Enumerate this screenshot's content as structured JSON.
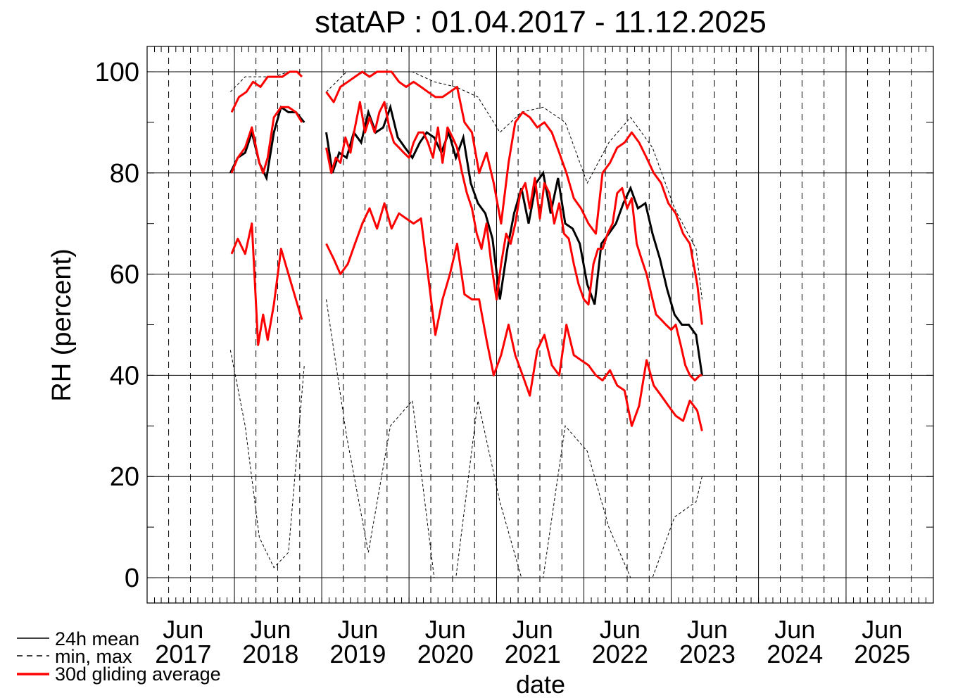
{
  "chart_data": {
    "type": "line",
    "title": "statAP : 01.04.2017 - 11.12.2025",
    "xlabel": "date",
    "ylabel": "RH (percent)",
    "ylim": [
      -5,
      105
    ],
    "y_ticks": [
      0,
      20,
      40,
      60,
      80,
      100
    ],
    "xlim": [
      "2017-01-01",
      "2026-01-01"
    ],
    "x_tick_labels": [
      {
        "date": "2017-06-01",
        "month": "Jun",
        "year": "2017"
      },
      {
        "date": "2018-06-01",
        "month": "Jun",
        "year": "2018"
      },
      {
        "date": "2019-06-01",
        "month": "Jun",
        "year": "2019"
      },
      {
        "date": "2020-06-01",
        "month": "Jun",
        "year": "2020"
      },
      {
        "date": "2021-06-01",
        "month": "Jun",
        "year": "2021"
      },
      {
        "date": "2022-06-01",
        "month": "Jun",
        "year": "2022"
      },
      {
        "date": "2023-06-01",
        "month": "Jun",
        "year": "2023"
      },
      {
        "date": "2024-06-01",
        "month": "Jun",
        "year": "2024"
      },
      {
        "date": "2025-06-01",
        "month": "Jun",
        "year": "2025"
      }
    ],
    "grid": true,
    "legend_position": "bottom-left",
    "legend": [
      {
        "label": "24h mean",
        "style": "solid",
        "color": "#000000"
      },
      {
        "label": "min, max",
        "style": "dashed",
        "color": "#000000"
      },
      {
        "label": "30d gliding average",
        "style": "solid",
        "color": "#ff0000"
      }
    ],
    "series": [
      {
        "label": "24h mean",
        "color": "#000000",
        "segments": [
          {
            "x": [
              "2017-12-15",
              "2018-01-15",
              "2018-02-15",
              "2018-03-15",
              "2018-04-15",
              "2018-05-15",
              "2018-06-15",
              "2018-07-15",
              "2018-08-15",
              "2018-09-15",
              "2018-10-20"
            ],
            "y": [
              80,
              83,
              84,
              88,
              82,
              79,
              88,
              93,
              92,
              92,
              90
            ]
          },
          {
            "x": [
              "2019-01-20",
              "2019-02-15",
              "2019-03-15",
              "2019-04-15",
              "2019-05-15",
              "2019-06-15",
              "2019-07-15",
              "2019-08-15",
              "2019-09-15",
              "2019-10-15",
              "2019-11-15",
              "2019-12-15",
              "2020-01-15",
              "2020-02-15",
              "2020-03-15",
              "2020-04-15",
              "2020-05-15",
              "2020-06-15",
              "2020-07-15",
              "2020-08-15",
              "2020-09-15",
              "2020-10-15",
              "2020-11-15",
              "2020-12-15",
              "2021-01-15",
              "2021-02-15",
              "2021-03-15",
              "2021-04-15",
              "2021-05-15",
              "2021-06-15",
              "2021-07-15",
              "2021-08-15",
              "2021-09-15",
              "2021-10-15",
              "2021-11-15",
              "2021-12-15",
              "2022-01-15",
              "2022-02-15",
              "2022-03-15",
              "2022-04-15",
              "2022-05-15",
              "2022-06-15",
              "2022-07-15",
              "2022-08-15",
              "2022-09-15",
              "2022-10-15",
              "2022-11-15",
              "2022-12-15",
              "2023-01-15",
              "2023-02-15",
              "2023-03-15",
              "2023-04-15",
              "2023-05-10"
            ],
            "y": [
              88,
              80,
              84,
              83,
              88,
              86,
              92,
              88,
              89,
              93,
              87,
              85,
              83,
              86,
              88,
              87,
              84,
              88,
              83,
              87,
              78,
              74,
              72,
              67,
              55,
              65,
              72,
              77,
              70,
              78,
              80,
              72,
              79,
              70,
              69,
              66,
              58,
              54,
              66,
              68,
              70,
              74,
              77,
              73,
              74,
              68,
              63,
              57,
              52,
              50,
              50,
              48,
              40
            ]
          }
        ]
      },
      {
        "label": "min, max",
        "color": "#000000",
        "max_segments": [
          {
            "x": [
              "2017-12-15",
              "2018-02-15",
              "2018-04-15",
              "2018-06-15",
              "2018-08-15",
              "2018-10-20"
            ],
            "y": [
              96,
              99,
              99,
              99,
              100,
              100
            ]
          },
          {
            "x": [
              "2019-01-20",
              "2019-04-15",
              "2019-07-15",
              "2019-10-15",
              "2020-01-15",
              "2020-04-15",
              "2020-07-15",
              "2020-10-15",
              "2021-01-15",
              "2021-04-15",
              "2021-07-15",
              "2021-10-15",
              "2022-01-15",
              "2022-04-15",
              "2022-07-15",
              "2022-10-15",
              "2023-01-15",
              "2023-04-15",
              "2023-05-10"
            ],
            "y": [
              96,
              100,
              100,
              100,
              100,
              98,
              97,
              95,
              88,
              92,
              93,
              90,
              78,
              86,
              91,
              85,
              73,
              65,
              55
            ]
          }
        ],
        "min_segments": [
          {
            "x": [
              "2017-12-15",
              "2018-02-15",
              "2018-04-15",
              "2018-06-15",
              "2018-08-15",
              "2018-10-20"
            ],
            "y": [
              45,
              30,
              8,
              2,
              5,
              42
            ]
          },
          {
            "x": [
              "2019-01-20",
              "2019-04-15",
              "2019-07-15",
              "2019-10-15",
              "2020-01-15",
              "2020-04-15",
              "2020-07-15",
              "2020-10-15",
              "2021-01-15",
              "2021-04-15",
              "2021-07-15",
              "2021-10-15",
              "2022-01-15",
              "2022-04-15",
              "2022-07-15",
              "2022-10-15",
              "2023-01-15",
              "2023-04-15",
              "2023-05-10"
            ],
            "y": [
              55,
              28,
              5,
              30,
              35,
              0,
              0,
              35,
              15,
              0,
              0,
              30,
              25,
              10,
              0,
              0,
              12,
              15,
              20
            ]
          }
        ]
      },
      {
        "label": "30d gliding average (mean)",
        "color": "#ff0000",
        "segments": [
          {
            "x": [
              "2017-12-20",
              "2018-01-15",
              "2018-02-15",
              "2018-03-15",
              "2018-04-15",
              "2018-05-01",
              "2018-05-20",
              "2018-06-15",
              "2018-07-15",
              "2018-08-15",
              "2018-09-15",
              "2018-10-10"
            ],
            "y": [
              80,
              83,
              85,
              89,
              82,
              80,
              83,
              91,
              93,
              93,
              92,
              90
            ]
          },
          {
            "x": [
              "2019-01-20",
              "2019-02-10",
              "2019-03-01",
              "2019-03-20",
              "2019-04-10",
              "2019-05-01",
              "2019-05-20",
              "2019-06-10",
              "2019-07-01",
              "2019-07-20",
              "2019-08-10",
              "2019-08-30",
              "2019-09-20",
              "2019-10-10",
              "2019-10-30",
              "2019-11-20",
              "2019-12-10",
              "2020-01-01",
              "2020-01-20",
              "2020-02-10",
              "2020-03-01",
              "2020-03-20",
              "2020-04-10",
              "2020-05-01",
              "2020-05-20",
              "2020-06-10",
              "2020-07-01",
              "2020-07-20",
              "2020-08-10",
              "2020-08-30",
              "2020-09-20",
              "2020-10-10",
              "2020-10-30",
              "2020-11-20",
              "2020-12-10",
              "2021-01-01",
              "2021-01-20",
              "2021-02-10",
              "2021-03-01",
              "2021-03-20",
              "2021-04-10",
              "2021-05-01",
              "2021-05-20",
              "2021-06-10",
              "2021-07-01",
              "2021-07-20",
              "2021-08-10",
              "2021-08-30",
              "2021-09-20",
              "2021-10-10",
              "2021-10-30",
              "2021-11-20",
              "2021-12-10",
              "2022-01-01",
              "2022-01-20",
              "2022-02-10",
              "2022-03-01",
              "2022-03-20",
              "2022-04-10",
              "2022-05-01",
              "2022-05-20",
              "2022-06-10",
              "2022-07-01",
              "2022-07-20",
              "2022-08-10",
              "2022-08-30",
              "2022-09-20",
              "2022-10-10",
              "2022-10-30",
              "2022-11-20",
              "2022-12-10",
              "2023-01-01",
              "2023-01-20",
              "2023-02-10",
              "2023-03-01",
              "2023-03-20",
              "2023-04-10",
              "2023-05-01",
              "2023-05-10"
            ],
            "y": [
              85,
              80,
              83,
              82,
              87,
              84,
              89,
              94,
              88,
              91,
              88,
              92,
              94,
              89,
              86,
              85,
              84,
              83,
              86,
              88,
              88,
              86,
              83,
              89,
              82,
              89,
              87,
              85,
              80,
              76,
              73,
              68,
              65,
              70,
              62,
              55,
              62,
              68,
              66,
              70,
              76,
              78,
              73,
              79,
              71,
              78,
              76,
              70,
              74,
              68,
              67,
              62,
              58,
              55,
              54,
              62,
              65,
              65,
              68,
              70,
              76,
              77,
              73,
              75,
              66,
              63,
              60,
              56,
              52,
              51,
              50,
              49,
              50,
              46,
              42,
              40,
              39,
              40,
              40
            ]
          }
        ]
      },
      {
        "label": "30d gliding average (max)",
        "color": "#ff0000",
        "segments": [
          {
            "x": [
              "2017-12-20",
              "2018-01-20",
              "2018-02-20",
              "2018-03-20",
              "2018-04-20",
              "2018-05-20",
              "2018-06-20",
              "2018-07-20",
              "2018-08-20",
              "2018-09-20",
              "2018-10-10"
            ],
            "y": [
              92,
              95,
              96,
              98,
              97,
              99,
              99,
              99,
              100,
              100,
              99
            ]
          },
          {
            "x": [
              "2019-01-20",
              "2019-02-20",
              "2019-03-20",
              "2019-04-20",
              "2019-05-20",
              "2019-06-20",
              "2019-07-20",
              "2019-08-20",
              "2019-09-20",
              "2019-10-20",
              "2019-11-20",
              "2019-12-20",
              "2020-01-20",
              "2020-02-20",
              "2020-03-20",
              "2020-04-20",
              "2020-05-20",
              "2020-06-20",
              "2020-07-20",
              "2020-08-20",
              "2020-09-20",
              "2020-10-20",
              "2020-11-20",
              "2020-12-20",
              "2021-01-20",
              "2021-02-20",
              "2021-03-20",
              "2021-04-20",
              "2021-05-20",
              "2021-06-20",
              "2021-07-20",
              "2021-08-20",
              "2021-09-20",
              "2021-10-20",
              "2021-11-20",
              "2021-12-20",
              "2022-01-20",
              "2022-02-20",
              "2022-03-20",
              "2022-04-20",
              "2022-05-20",
              "2022-06-20",
              "2022-07-20",
              "2022-08-20",
              "2022-09-20",
              "2022-10-20",
              "2022-11-20",
              "2022-12-20",
              "2023-01-20",
              "2023-02-20",
              "2023-03-20",
              "2023-04-20",
              "2023-05-10"
            ],
            "y": [
              96,
              94,
              97,
              98,
              99,
              100,
              99,
              100,
              100,
              100,
              98,
              97,
              98,
              97,
              96,
              95,
              95,
              96,
              97,
              90,
              88,
              80,
              84,
              78,
              70,
              82,
              90,
              92,
              91,
              89,
              90,
              88,
              84,
              80,
              75,
              73,
              70,
              68,
              80,
              82,
              85,
              86,
              88,
              86,
              83,
              80,
              78,
              74,
              72,
              68,
              66,
              58,
              50
            ]
          }
        ]
      },
      {
        "label": "30d gliding average (min)",
        "color": "#ff0000",
        "segments": [
          {
            "x": [
              "2017-12-20",
              "2018-01-15",
              "2018-02-15",
              "2018-03-15",
              "2018-04-10",
              "2018-05-01",
              "2018-05-20",
              "2018-06-15",
              "2018-07-15",
              "2018-08-15",
              "2018-09-15",
              "2018-10-10"
            ],
            "y": [
              64,
              67,
              64,
              70,
              46,
              52,
              47,
              54,
              65,
              60,
              55,
              51
            ]
          },
          {
            "x": [
              "2019-01-20",
              "2019-02-20",
              "2019-03-20",
              "2019-04-20",
              "2019-05-20",
              "2019-06-20",
              "2019-07-20",
              "2019-08-20",
              "2019-09-20",
              "2019-10-20",
              "2019-11-20",
              "2019-12-20",
              "2020-01-20",
              "2020-02-20",
              "2020-03-20",
              "2020-04-20",
              "2020-05-20",
              "2020-06-20",
              "2020-07-20",
              "2020-08-20",
              "2020-09-20",
              "2020-10-20",
              "2020-11-20",
              "2020-12-20",
              "2021-01-20",
              "2021-02-20",
              "2021-03-20",
              "2021-04-20",
              "2021-05-20",
              "2021-06-20",
              "2021-07-20",
              "2021-08-20",
              "2021-09-20",
              "2021-10-20",
              "2021-11-20",
              "2021-12-20",
              "2022-01-20",
              "2022-02-20",
              "2022-03-20",
              "2022-04-20",
              "2022-05-20",
              "2022-06-20",
              "2022-07-20",
              "2022-08-20",
              "2022-09-20",
              "2022-10-20",
              "2022-11-20",
              "2022-12-20",
              "2023-01-20",
              "2023-02-20",
              "2023-03-20",
              "2023-04-20",
              "2023-05-10"
            ],
            "y": [
              66,
              63,
              60,
              62,
              66,
              70,
              73,
              69,
              74,
              69,
              72,
              71,
              70,
              71,
              60,
              48,
              55,
              60,
              66,
              56,
              55,
              55,
              47,
              40,
              44,
              50,
              44,
              40,
              36,
              45,
              48,
              42,
              40,
              50,
              44,
              43,
              42,
              40,
              39,
              41,
              38,
              37,
              30,
              34,
              43,
              38,
              36,
              34,
              32,
              31,
              35,
              33,
              29
            ]
          }
        ]
      }
    ]
  }
}
